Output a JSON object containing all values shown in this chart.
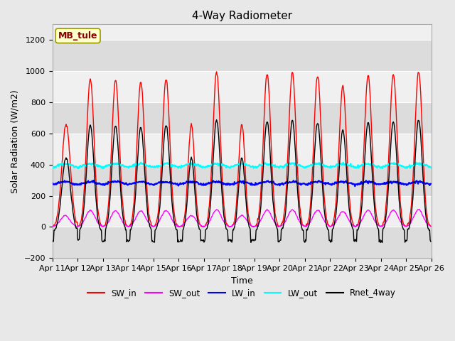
{
  "title": "4-Way Radiometer",
  "xlabel": "Time",
  "ylabel": "Solar Radiation (W/m2)",
  "ylim": [
    -200,
    1300
  ],
  "yticks": [
    -200,
    0,
    200,
    400,
    600,
    800,
    1000,
    1200
  ],
  "xtick_labels": [
    "Apr 11",
    "Apr 12",
    "Apr 13",
    "Apr 14",
    "Apr 15",
    "Apr 16",
    "Apr 17",
    "Apr 18",
    "Apr 19",
    "Apr 20",
    "Apr 21",
    "Apr 22",
    "Apr 23",
    "Apr 24",
    "Apr 25",
    "Apr 26"
  ],
  "annotation_text": "MB_tule",
  "annotation_color": "#8B0000",
  "annotation_bg": "#FFFFCC",
  "annotation_border": "#999900",
  "series": {
    "SW_in": {
      "color": "#FF0000",
      "lw": 1.0
    },
    "SW_out": {
      "color": "#FF00FF",
      "lw": 1.0
    },
    "LW_in": {
      "color": "#0000FF",
      "lw": 1.5
    },
    "LW_out": {
      "color": "#00FFFF",
      "lw": 1.5
    },
    "Rnet_4way": {
      "color": "#000000",
      "lw": 1.0
    }
  },
  "legend_entries": [
    "SW_in",
    "SW_out",
    "LW_in",
    "LW_out",
    "Rnet_4way"
  ],
  "legend_colors": [
    "#FF0000",
    "#FF00FF",
    "#0000FF",
    "#00FFFF",
    "#000000"
  ],
  "bg_color": "#E8E8E8",
  "plot_bg": "#F0F0F0",
  "band_colors": [
    "#DCDCDC",
    "#F0F0F0"
  ],
  "grid_color": "#FFFFFF"
}
